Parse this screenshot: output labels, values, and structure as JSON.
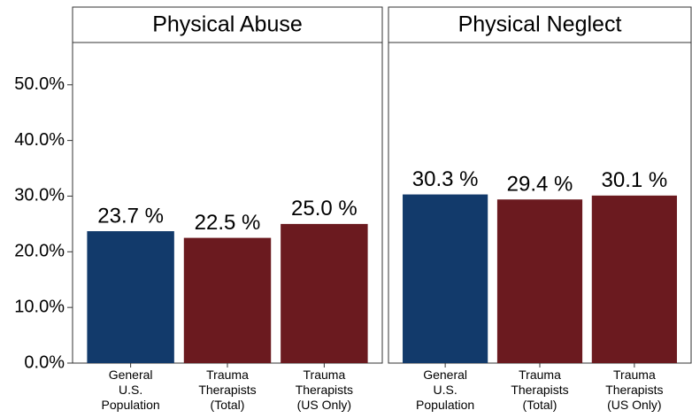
{
  "chart_data": [
    {
      "type": "bar",
      "title": "Physical Abuse",
      "categories": [
        "General\nU.S.\nPopulation",
        "Trauma\nTherapists\n(Total)",
        "Trauma\nTherapists\n(US Only)"
      ],
      "values": [
        23.7,
        22.5,
        25.0
      ],
      "value_labels": [
        "23.7 %",
        "22.5 %",
        "25.0 %"
      ],
      "colors": [
        "#123a6b",
        "#6b1a1f",
        "#6b1a1f"
      ],
      "ylim": [
        0,
        57.6
      ],
      "yticks": [
        {
          "value": 0,
          "label": "0.0%"
        },
        {
          "value": 10,
          "label": "10.0%"
        },
        {
          "value": 20,
          "label": "20.0%"
        },
        {
          "value": 30,
          "label": "30.0%"
        },
        {
          "value": 40,
          "label": "40.0%"
        },
        {
          "value": 50,
          "label": "50.0%"
        }
      ]
    },
    {
      "type": "bar",
      "title": "Physical Neglect",
      "categories": [
        "General\nU.S.\nPopulation",
        "Trauma\nTherapists\n(Total)",
        "Trauma\nTherapists\n(US Only)"
      ],
      "values": [
        30.3,
        29.4,
        30.1
      ],
      "value_labels": [
        "30.3 %",
        "29.4 %",
        "30.1 %"
      ],
      "colors": [
        "#123a6b",
        "#6b1a1f",
        "#6b1a1f"
      ],
      "ylim": [
        0,
        57.6
      ]
    }
  ]
}
